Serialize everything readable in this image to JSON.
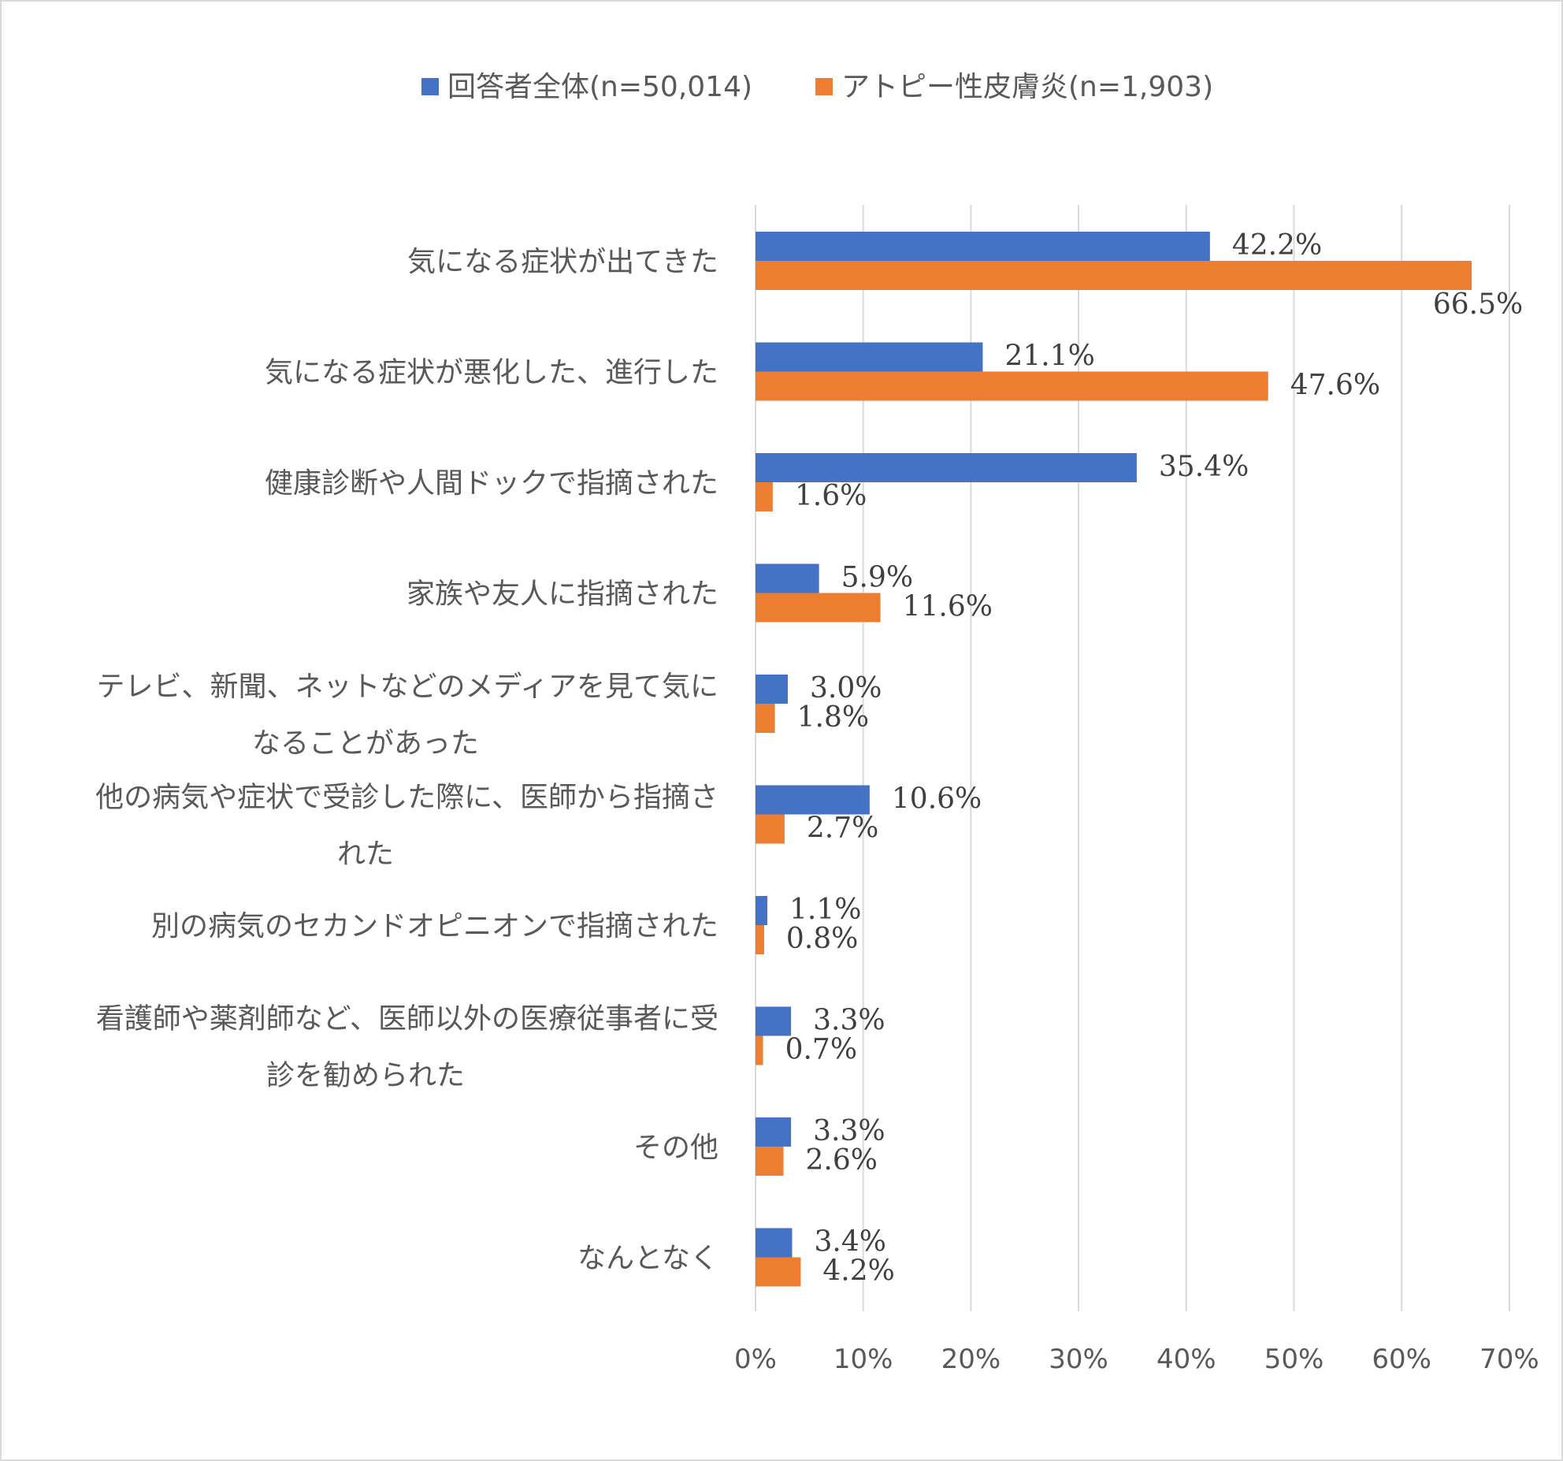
{
  "chart_data": {
    "type": "bar",
    "orientation": "horizontal",
    "title": "",
    "xlabel": "",
    "ylabel": "",
    "xlim": [
      0,
      70
    ],
    "x_ticks": [
      "0%",
      "10%",
      "20%",
      "30%",
      "40%",
      "50%",
      "60%",
      "70%"
    ],
    "x_tick_values": [
      0,
      10,
      20,
      30,
      40,
      50,
      60,
      70
    ],
    "grid": true,
    "legend_position": "top-center",
    "categories": [
      [
        "気になる症状が出てきた"
      ],
      [
        "気になる症状が悪化した、進行した"
      ],
      [
        "健康診断や人間ドックで指摘された"
      ],
      [
        "家族や友人に指摘された"
      ],
      [
        "テレビ、新聞、ネットなどのメディアを見て気に",
        "なることがあった"
      ],
      [
        "他の病気や症状で受診した際に、医師から指摘さ",
        "れた"
      ],
      [
        "別の病気のセカンドオピニオンで指摘された"
      ],
      [
        "看護師や薬剤師など、医師以外の医療従事者に受",
        "診を勧められた"
      ],
      [
        "その他"
      ],
      [
        "なんとなく"
      ]
    ],
    "series": [
      {
        "name": "回答者全体(n=50,014)",
        "color": "#4472c4",
        "values": [
          42.2,
          21.1,
          35.4,
          5.9,
          3.0,
          10.6,
          1.1,
          3.3,
          3.3,
          3.4
        ],
        "labels": [
          "42.2%",
          "21.1%",
          "35.4%",
          "5.9%",
          "3.0%",
          "10.6%",
          "1.1%",
          "3.3%",
          "3.3%",
          "3.4%"
        ]
      },
      {
        "name": "アトピー性皮膚炎(n=1,903)",
        "color": "#ed7d31",
        "values": [
          66.5,
          47.6,
          1.6,
          11.6,
          1.8,
          2.7,
          0.8,
          0.7,
          2.6,
          4.2
        ],
        "labels": [
          "66.5%",
          "47.6%",
          "1.6%",
          "11.6%",
          "1.8%",
          "2.7%",
          "0.8%",
          "0.7%",
          "2.6%",
          "4.2%"
        ]
      }
    ]
  }
}
